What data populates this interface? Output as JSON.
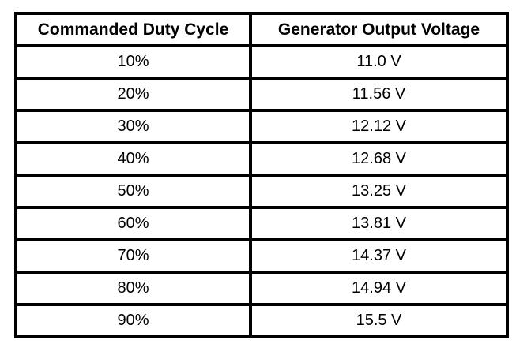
{
  "colors": {
    "border": "#000000",
    "background": "#ffffff",
    "text": "#000000"
  },
  "table": {
    "headers": [
      "Commanded Duty Cycle",
      "Generator Output Voltage"
    ],
    "rows": [
      {
        "duty_cycle": "10%",
        "voltage": "11.0 V"
      },
      {
        "duty_cycle": "20%",
        "voltage": "11.56 V"
      },
      {
        "duty_cycle": "30%",
        "voltage": "12.12 V"
      },
      {
        "duty_cycle": "40%",
        "voltage": "12.68 V"
      },
      {
        "duty_cycle": "50%",
        "voltage": "13.25 V"
      },
      {
        "duty_cycle": "60%",
        "voltage": "13.81 V"
      },
      {
        "duty_cycle": "70%",
        "voltage": "14.37 V"
      },
      {
        "duty_cycle": "80%",
        "voltage": "14.94 V"
      },
      {
        "duty_cycle": "90%",
        "voltage": "15.5 V"
      }
    ]
  },
  "chart_data": {
    "type": "table",
    "columns": [
      "Commanded Duty Cycle",
      "Generator Output Voltage"
    ],
    "rows": [
      [
        "10%",
        "11.0 V"
      ],
      [
        "20%",
        "11.56 V"
      ],
      [
        "30%",
        "12.12 V"
      ],
      [
        "40%",
        "12.68 V"
      ],
      [
        "50%",
        "13.25 V"
      ],
      [
        "60%",
        "13.81 V"
      ],
      [
        "70%",
        "14.37 V"
      ],
      [
        "80%",
        "14.94 V"
      ],
      [
        "90%",
        "15.5 V"
      ]
    ],
    "title": "",
    "xlabel": "Commanded Duty Cycle",
    "ylabel": "Generator Output Voltage",
    "duty_cycle_percent": [
      10,
      20,
      30,
      40,
      50,
      60,
      70,
      80,
      90
    ],
    "output_voltage_v": [
      11.0,
      11.56,
      12.12,
      12.68,
      13.25,
      13.81,
      14.37,
      14.94,
      15.5
    ]
  }
}
